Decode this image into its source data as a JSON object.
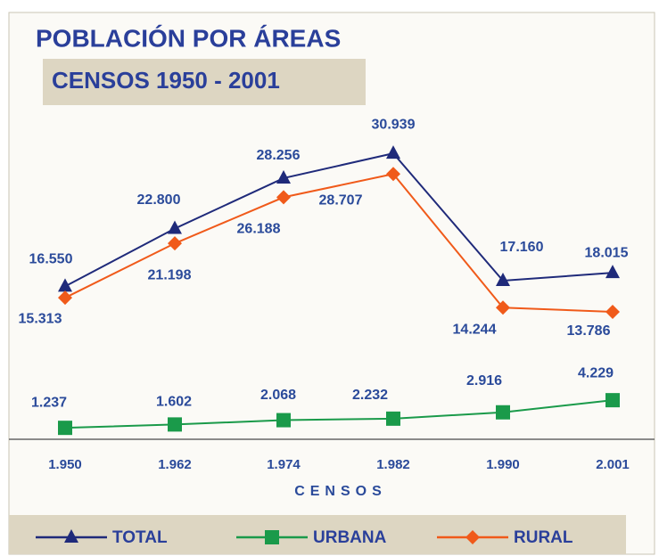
{
  "chart_data": {
    "type": "line",
    "title": "POBLACIÓN POR ÁREAS",
    "subtitle": "CENSOS 1950 - 2001",
    "x_label": "CENSOS",
    "categories": [
      "1.950",
      "1.962",
      "1.974",
      "1.982",
      "1.990",
      "2.001"
    ],
    "ylim": [
      0,
      35000
    ],
    "series": [
      {
        "name": "TOTAL",
        "color": "#1f2a7a",
        "marker": "triangle",
        "values": [
          16550,
          22800,
          28256,
          30939,
          17160,
          18015
        ],
        "value_labels": [
          "16.550",
          "22.800",
          "28.256",
          "30.939",
          "17.160",
          "18.015"
        ]
      },
      {
        "name": "URBANA",
        "color": "#1a9a4a",
        "marker": "square",
        "values": [
          1237,
          1602,
          2068,
          2232,
          2916,
          4229
        ],
        "value_labels": [
          "1.237",
          "1.602",
          "2.068",
          "2.232",
          "2.916",
          "4.229"
        ]
      },
      {
        "name": "RURAL",
        "color": "#f05a1a",
        "marker": "diamond",
        "values": [
          15313,
          21198,
          26188,
          28707,
          14244,
          13786
        ],
        "value_labels": [
          "15.313",
          "21.198",
          "26.188",
          "28.707",
          "14.244",
          "13.786"
        ]
      }
    ]
  }
}
